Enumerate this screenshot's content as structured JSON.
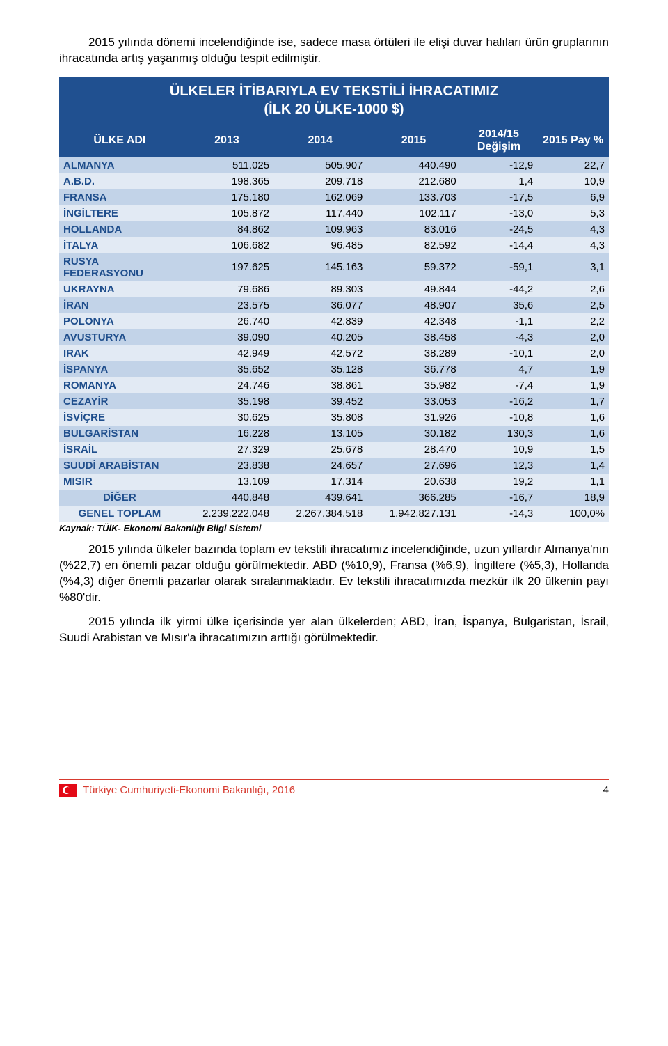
{
  "intro": "2015 yılında dönemi incelendiğinde ise, sadece masa örtüleri ile elişi duvar halıları ürün gruplarının ihracatında artış yaşanmış olduğu tespit edilmiştir.",
  "table_title_l1": "ÜLKELER İTİBARIYLA EV TEKSTİLİ İHRACATIMIZ",
  "table_title_l2": "(İLK 20 ÜLKE-1000 $)",
  "headers": {
    "country": "ÜLKE ADI",
    "h2013": "2013",
    "h2014": "2014",
    "h2015": "2015",
    "change": "2014/15 Değişim",
    "share": "2015 Pay %"
  },
  "rows": [
    {
      "c": "ALMANYA",
      "a": "511.025",
      "b": "505.907",
      "d": "440.490",
      "e": "-12,9",
      "f": "22,7"
    },
    {
      "c": "A.B.D.",
      "a": "198.365",
      "b": "209.718",
      "d": "212.680",
      "e": "1,4",
      "f": "10,9"
    },
    {
      "c": "FRANSA",
      "a": "175.180",
      "b": "162.069",
      "d": "133.703",
      "e": "-17,5",
      "f": "6,9"
    },
    {
      "c": "İNGİLTERE",
      "a": "105.872",
      "b": "117.440",
      "d": "102.117",
      "e": "-13,0",
      "f": "5,3"
    },
    {
      "c": "HOLLANDA",
      "a": "84.862",
      "b": "109.963",
      "d": "83.016",
      "e": "-24,5",
      "f": "4,3"
    },
    {
      "c": "İTALYA",
      "a": "106.682",
      "b": "96.485",
      "d": "82.592",
      "e": "-14,4",
      "f": "4,3"
    },
    {
      "c": "RUSYA FEDERASYONU",
      "a": "197.625",
      "b": "145.163",
      "d": "59.372",
      "e": "-59,1",
      "f": "3,1"
    },
    {
      "c": "UKRAYNA",
      "a": "79.686",
      "b": "89.303",
      "d": "49.844",
      "e": "-44,2",
      "f": "2,6"
    },
    {
      "c": "İRAN",
      "a": "23.575",
      "b": "36.077",
      "d": "48.907",
      "e": "35,6",
      "f": "2,5"
    },
    {
      "c": "POLONYA",
      "a": "26.740",
      "b": "42.839",
      "d": "42.348",
      "e": "-1,1",
      "f": "2,2"
    },
    {
      "c": "AVUSTURYA",
      "a": "39.090",
      "b": "40.205",
      "d": "38.458",
      "e": "-4,3",
      "f": "2,0"
    },
    {
      "c": "IRAK",
      "a": "42.949",
      "b": "42.572",
      "d": "38.289",
      "e": "-10,1",
      "f": "2,0"
    },
    {
      "c": "İSPANYA",
      "a": "35.652",
      "b": "35.128",
      "d": "36.778",
      "e": "4,7",
      "f": "1,9"
    },
    {
      "c": "ROMANYA",
      "a": "24.746",
      "b": "38.861",
      "d": "35.982",
      "e": "-7,4",
      "f": "1,9"
    },
    {
      "c": "CEZAYİR",
      "a": "35.198",
      "b": "39.452",
      "d": "33.053",
      "e": "-16,2",
      "f": "1,7"
    },
    {
      "c": "İSVİÇRE",
      "a": "30.625",
      "b": "35.808",
      "d": "31.926",
      "e": "-10,8",
      "f": "1,6"
    },
    {
      "c": "BULGARİSTAN",
      "a": "16.228",
      "b": "13.105",
      "d": "30.182",
      "e": "130,3",
      "f": "1,6"
    },
    {
      "c": "İSRAİL",
      "a": "27.329",
      "b": "25.678",
      "d": "28.470",
      "e": "10,9",
      "f": "1,5"
    },
    {
      "c": "SUUDİ ARABİSTAN",
      "a": "23.838",
      "b": "24.657",
      "d": "27.696",
      "e": "12,3",
      "f": "1,4"
    },
    {
      "c": "MISIR",
      "a": "13.109",
      "b": "17.314",
      "d": "20.638",
      "e": "19,2",
      "f": "1,1"
    },
    {
      "c": "DİĞER",
      "a": "440.848",
      "b": "439.641",
      "d": "366.285",
      "e": "-16,7",
      "f": "18,9",
      "other": true
    },
    {
      "c": "GENEL TOPLAM",
      "a": "2.239.222.048",
      "b": "2.267.384.518",
      "d": "1.942.827.131",
      "e": "-14,3",
      "f": "100,0%",
      "other": true
    }
  ],
  "source": "Kaynak: TÜİK- Ekonomi Bakanlığı Bilgi Sistemi",
  "para1": "2015 yılında ülkeler bazında toplam ev tekstili ihracatımız incelendiğinde, uzun yıllardır Almanya'nın (%22,7) en önemli pazar olduğu görülmektedir. ABD (%10,9), Fransa (%6,9), İngiltere (%5,3), Hollanda (%4,3) diğer önemli pazarlar olarak sıralanmaktadır. Ev tekstili ihracatımızda mezkûr ilk 20 ülkenin payı %80'dir.",
  "para2": "2015 yılında ilk yirmi ülke içerisinde yer alan ülkelerden; ABD, İran, İspanya, Bulgaristan, İsrail, Suudi Arabistan ve Mısır'a ihracatımızın arttığı görülmektedir.",
  "footer_text": "Türkiye Cumhuriyeti-Ekonomi Bakanlığı, 2016",
  "page_number": "4",
  "colors": {
    "header_bg": "#205090",
    "band_a": "#c2d3e8",
    "band_b": "#e2eaf4",
    "country_text": "#1f4e8c",
    "footer_accent": "#d73a2f"
  }
}
